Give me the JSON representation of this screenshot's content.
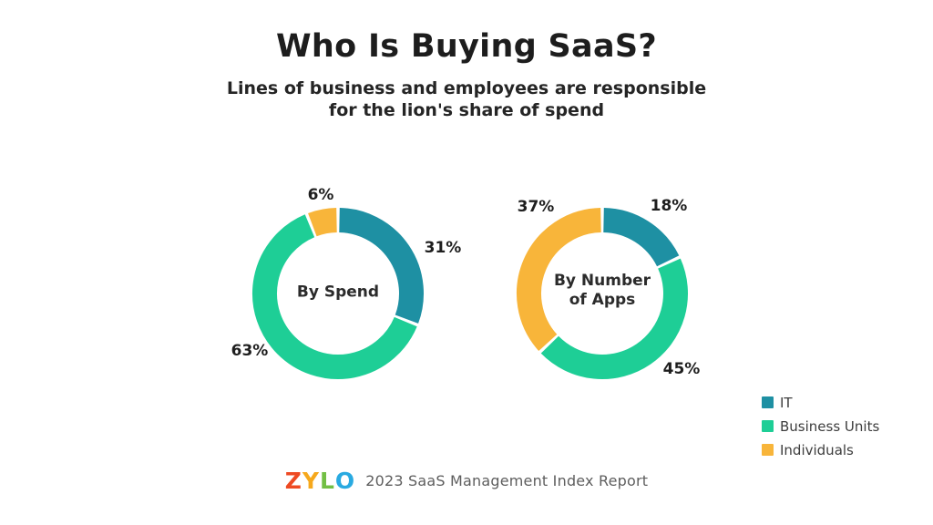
{
  "title": "Who Is Buying SaaS?",
  "subtitle": "Lines of business and employees are responsible\nfor the lion's share of spend",
  "colors": {
    "it": "#1e90a3",
    "business_units": "#1ece96",
    "individuals": "#f8b53a",
    "text_dark": "#1e1e1e",
    "footer_gray": "#5e5e5e"
  },
  "chart_data": [
    {
      "type": "pie",
      "subtype": "donut",
      "title": "By Spend",
      "categories": [
        "IT",
        "Business Units",
        "Individuals"
      ],
      "values": [
        31,
        63,
        6
      ],
      "labels": [
        "31%",
        "63%",
        "6%"
      ],
      "colors": [
        "#1e90a3",
        "#1ece96",
        "#f8b53a"
      ],
      "start_angle_deg": 0,
      "direction": "clockwise"
    },
    {
      "type": "pie",
      "subtype": "donut",
      "title": "By Number of Apps",
      "categories": [
        "IT",
        "Business Units",
        "Individuals"
      ],
      "values": [
        18,
        45,
        37
      ],
      "labels": [
        "18%",
        "45%",
        "37%"
      ],
      "colors": [
        "#1e90a3",
        "#1ece96",
        "#f8b53a"
      ],
      "start_angle_deg": 0,
      "direction": "clockwise"
    }
  ],
  "legend": {
    "position": "bottom-right",
    "items": [
      {
        "label": "IT",
        "color": "#1e90a3"
      },
      {
        "label": "Business Units",
        "color": "#1ece96"
      },
      {
        "label": "Individuals",
        "color": "#f8b53a"
      }
    ]
  },
  "footer": {
    "logo_letters": [
      "Z",
      "Y",
      "L",
      "O"
    ],
    "logo_colors": [
      "#ee4a23",
      "#f6a81c",
      "#72bf44",
      "#29aae1"
    ],
    "text": "2023 SaaS Management Index Report"
  }
}
